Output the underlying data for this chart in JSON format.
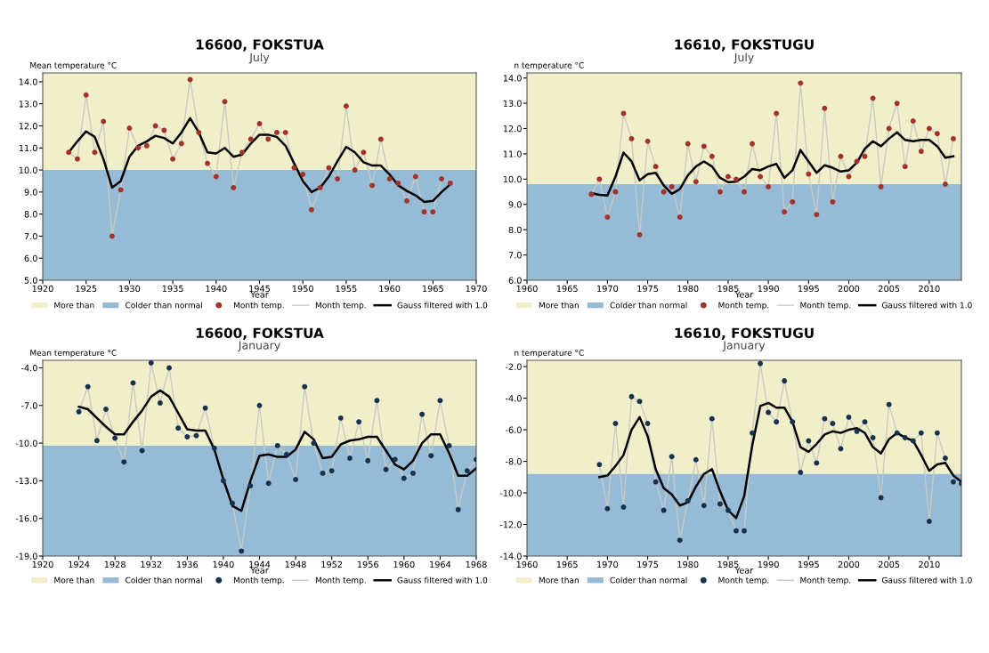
{
  "chart_data": [
    {
      "type": "line",
      "title": "16600, FOKSTUA",
      "subtitle": "July",
      "xlabel": "Year",
      "ylabel": "Mean temperature °C",
      "legend": "bottom",
      "grid": false,
      "x": [
        1923,
        1924,
        1925,
        1926,
        1927,
        1928,
        1929,
        1930,
        1931,
        1932,
        1933,
        1934,
        1935,
        1936,
        1937,
        1938,
        1939,
        1940,
        1941,
        1942,
        1943,
        1944,
        1945,
        1946,
        1947,
        1948,
        1949,
        1950,
        1951,
        1952,
        1953,
        1954,
        1955,
        1956,
        1957,
        1958,
        1959,
        1960,
        1961,
        1962,
        1963,
        1964,
        1965,
        1966,
        1967
      ],
      "series": [
        {
          "name": "Month temp.",
          "type": "scatter",
          "marker": "circle",
          "color": "#a3322b",
          "values": [
            10.8,
            10.5,
            13.4,
            10.8,
            12.2,
            7.0,
            9.1,
            11.9,
            11.0,
            11.1,
            12.0,
            11.8,
            10.5,
            11.2,
            14.1,
            11.7,
            10.3,
            9.7,
            13.1,
            9.2,
            10.8,
            11.4,
            12.1,
            11.4,
            11.7,
            11.7,
            10.1,
            9.8,
            8.2,
            9.2,
            10.1,
            9.6,
            12.9,
            10.0,
            10.8,
            9.3,
            11.4,
            9.6,
            9.4,
            8.6,
            9.7,
            8.1,
            8.1,
            9.6,
            9.4
          ]
        },
        {
          "name": "Month temp.",
          "color": "#c9c9c4",
          "values": [
            10.8,
            10.5,
            13.4,
            10.8,
            12.2,
            7.0,
            9.1,
            11.9,
            11.0,
            11.1,
            12.0,
            11.8,
            10.5,
            11.2,
            14.1,
            11.7,
            10.3,
            9.7,
            13.1,
            9.2,
            10.8,
            11.4,
            12.1,
            11.4,
            11.7,
            11.7,
            10.1,
            9.8,
            8.2,
            9.2,
            10.1,
            9.6,
            12.9,
            10.0,
            10.8,
            9.3,
            11.4,
            9.6,
            9.4,
            8.6,
            9.7,
            8.1,
            8.1,
            9.6,
            9.4
          ]
        },
        {
          "name": "Gauss filtered with 1.0",
          "color": "#000000",
          "values": [
            10.8,
            11.3,
            11.75,
            11.5,
            10.5,
            9.2,
            9.5,
            10.6,
            11.1,
            11.3,
            11.55,
            11.45,
            11.2,
            11.7,
            12.35,
            11.7,
            10.8,
            10.75,
            11.0,
            10.6,
            10.7,
            11.2,
            11.6,
            11.6,
            11.5,
            11.1,
            10.3,
            9.5,
            9.0,
            9.2,
            9.7,
            10.4,
            11.05,
            10.8,
            10.35,
            10.2,
            10.2,
            9.8,
            9.3,
            9.05,
            8.85,
            8.55,
            8.6,
            9.0,
            9.35
          ]
        }
      ],
      "bands": [
        {
          "axis": "y",
          "from": 10.0,
          "to": 14.4,
          "label": "More than",
          "color": "#f1efc9"
        },
        {
          "axis": "y",
          "from": 5.0,
          "to": 10.0,
          "label": "Colder than normal",
          "color": "#95bbd7"
        }
      ],
      "xlim": [
        1920,
        1970
      ],
      "xticks": [
        1920,
        1925,
        1930,
        1935,
        1940,
        1945,
        1950,
        1955,
        1960,
        1965,
        1970
      ],
      "ylim": [
        5.0,
        14.4
      ],
      "yticks": [
        {
          "value": 5,
          "label": "5.0"
        },
        {
          "value": 6,
          "label": "6.0"
        },
        {
          "value": 7,
          "label": "7.0"
        },
        {
          "value": 8,
          "label": "8.0"
        },
        {
          "value": 9,
          "label": "9.0"
        },
        {
          "value": 10,
          "label": "10.0"
        },
        {
          "value": 11,
          "label": "11.0"
        },
        {
          "value": 12,
          "label": "12.0"
        },
        {
          "value": 13,
          "label": "13.0"
        },
        {
          "value": 14,
          "label": "14.0"
        }
      ]
    },
    {
      "type": "line",
      "title": "16610, FOKSTUGU",
      "subtitle": "July",
      "xlabel": "Year",
      "ylabel": "n temperature °C",
      "legend": "bottom",
      "grid": false,
      "x": [
        1968,
        1969,
        1970,
        1971,
        1972,
        1973,
        1974,
        1975,
        1976,
        1977,
        1978,
        1979,
        1980,
        1981,
        1982,
        1983,
        1984,
        1985,
        1986,
        1987,
        1988,
        1989,
        1990,
        1991,
        1992,
        1993,
        1994,
        1995,
        1996,
        1997,
        1998,
        1999,
        2000,
        2001,
        2002,
        2003,
        2004,
        2005,
        2006,
        2007,
        2008,
        2009,
        2010,
        2011,
        2012,
        2013
      ],
      "series": [
        {
          "name": "Month temp.",
          "type": "scatter",
          "marker": "circle",
          "color": "#a3322b",
          "values": [
            9.4,
            10.0,
            8.5,
            9.5,
            12.6,
            11.6,
            7.8,
            11.5,
            10.5,
            9.5,
            9.7,
            8.5,
            11.4,
            9.9,
            11.3,
            10.9,
            9.5,
            10.1,
            10.0,
            9.5,
            11.4,
            10.1,
            9.7,
            12.6,
            8.7,
            9.1,
            13.8,
            10.2,
            8.6,
            12.8,
            9.1,
            10.9,
            10.1,
            10.7,
            10.9,
            13.2,
            9.7,
            12.0,
            13.0,
            10.5,
            12.3,
            11.1,
            12.0,
            11.8,
            9.8,
            11.6
          ]
        },
        {
          "name": "Month temp.",
          "color": "#c9c9c4",
          "values": [
            9.4,
            10.0,
            8.5,
            9.5,
            12.6,
            11.6,
            7.8,
            11.5,
            10.5,
            9.5,
            9.7,
            8.5,
            11.4,
            9.9,
            11.3,
            10.9,
            9.5,
            10.1,
            10.0,
            9.5,
            11.4,
            10.1,
            9.7,
            12.6,
            8.7,
            9.1,
            13.8,
            10.2,
            8.6,
            12.8,
            9.1,
            10.9,
            10.1,
            10.7,
            10.9,
            13.2,
            9.7,
            12.0,
            13.0,
            10.5,
            12.3,
            11.1,
            12.0,
            11.8,
            9.8,
            11.6
          ]
        },
        {
          "name": "Gauss filtered with 1.0",
          "color": "#000000",
          "values": [
            9.45,
            9.38,
            9.35,
            10.1,
            11.05,
            10.7,
            9.95,
            10.2,
            10.25,
            9.75,
            9.42,
            9.6,
            10.15,
            10.5,
            10.7,
            10.5,
            10.05,
            9.88,
            9.9,
            10.1,
            10.4,
            10.35,
            10.5,
            10.6,
            10.05,
            10.35,
            11.15,
            10.7,
            10.25,
            10.55,
            10.45,
            10.3,
            10.35,
            10.65,
            11.2,
            11.5,
            11.3,
            11.6,
            11.85,
            11.55,
            11.5,
            11.55,
            11.55,
            11.3,
            10.85,
            10.9
          ]
        }
      ],
      "bands": [
        {
          "axis": "y",
          "from": 9.8,
          "to": 14.2,
          "label": "More than",
          "color": "#f1efc9"
        },
        {
          "axis": "y",
          "from": 6.0,
          "to": 9.8,
          "label": "Colder than normal",
          "color": "#95bbd7"
        }
      ],
      "xlim": [
        1960,
        2014
      ],
      "xticks": [
        1960,
        1965,
        1970,
        1975,
        1980,
        1985,
        1990,
        1995,
        2000,
        2005,
        2010
      ],
      "ylim": [
        6.0,
        14.2
      ],
      "yticks": [
        {
          "value": 6,
          "label": "6.0"
        },
        {
          "value": 7,
          "label": "7.0"
        },
        {
          "value": 8,
          "label": "8.0"
        },
        {
          "value": 9,
          "label": "9.0"
        },
        {
          "value": 10,
          "label": "10.0"
        },
        {
          "value": 11,
          "label": "11.0"
        },
        {
          "value": 12,
          "label": "12.0"
        },
        {
          "value": 13,
          "label": "13.0"
        },
        {
          "value": 14,
          "label": "14.0"
        }
      ]
    },
    {
      "type": "line",
      "title": "16600, FOKSTUA",
      "subtitle": "January",
      "xlabel": "Year",
      "ylabel": "Mean temperature °C",
      "legend": "bottom",
      "grid": false,
      "x": [
        1924,
        1925,
        1926,
        1927,
        1928,
        1929,
        1930,
        1931,
        1932,
        1933,
        1934,
        1935,
        1936,
        1937,
        1938,
        1939,
        1940,
        1941,
        1942,
        1943,
        1944,
        1945,
        1946,
        1947,
        1948,
        1949,
        1950,
        1951,
        1952,
        1953,
        1954,
        1955,
        1956,
        1957,
        1958,
        1959,
        1960,
        1961,
        1962,
        1963,
        1964,
        1965,
        1966,
        1967,
        1968
      ],
      "series": [
        {
          "name": "Month temp.",
          "type": "scatter",
          "marker": "circle",
          "color": "#16324f",
          "values": [
            -7.5,
            -5.5,
            -9.8,
            -7.3,
            -9.6,
            -11.5,
            -5.2,
            -10.6,
            -3.6,
            -6.8,
            -4.0,
            -8.8,
            -9.5,
            -9.4,
            -7.2,
            -10.4,
            -13.0,
            -14.8,
            -18.6,
            -13.4,
            -7.0,
            -13.2,
            -10.2,
            -10.9,
            -12.9,
            -5.5,
            -10.0,
            -12.4,
            -12.2,
            -8.0,
            -11.2,
            -8.3,
            -11.4,
            -6.6,
            -12.1,
            -11.3,
            -12.8,
            -12.4,
            -7.7,
            -11.0,
            -6.6,
            -10.2,
            -15.3,
            -12.2,
            -11.3
          ]
        },
        {
          "name": "Month temp.",
          "color": "#c9c9c4",
          "values": [
            -7.5,
            -5.5,
            -9.8,
            -7.3,
            -9.6,
            -11.5,
            -5.2,
            -10.6,
            -3.6,
            -6.8,
            -4.0,
            -8.8,
            -9.5,
            -9.4,
            -7.2,
            -10.4,
            -13.0,
            -14.8,
            -18.6,
            -13.4,
            -7.0,
            -13.2,
            -10.2,
            -10.9,
            -12.9,
            -5.5,
            -10.0,
            -12.4,
            -12.2,
            -8.0,
            -11.2,
            -8.3,
            -11.4,
            -6.6,
            -12.1,
            -11.3,
            -12.8,
            -12.4,
            -7.7,
            -11.0,
            -6.6,
            -10.2,
            -15.3,
            -12.2,
            -11.3
          ]
        },
        {
          "name": "Gauss filtered with 1.0",
          "color": "#000000",
          "values": [
            -7.1,
            -7.3,
            -8.0,
            -8.7,
            -9.3,
            -9.3,
            -8.3,
            -7.4,
            -6.3,
            -5.8,
            -6.3,
            -7.6,
            -8.9,
            -9.0,
            -9.0,
            -10.5,
            -12.9,
            -15.0,
            -15.4,
            -13.0,
            -11.0,
            -10.9,
            -11.1,
            -11.1,
            -10.5,
            -9.1,
            -9.7,
            -11.2,
            -11.1,
            -10.1,
            -9.8,
            -9.7,
            -9.5,
            -9.5,
            -10.6,
            -11.7,
            -12.1,
            -11.4,
            -10.0,
            -9.3,
            -9.3,
            -10.8,
            -12.6,
            -12.6,
            -12.0
          ]
        }
      ],
      "bands": [
        {
          "axis": "y",
          "from": -10.2,
          "to": -3.4,
          "label": "More than",
          "color": "#f1efc9"
        },
        {
          "axis": "y",
          "from": -19.0,
          "to": -10.2,
          "label": "Colder than normal",
          "color": "#95bbd7"
        }
      ],
      "xlim": [
        1920,
        1968
      ],
      "xticks": [
        1920,
        1924,
        1928,
        1932,
        1936,
        1940,
        1944,
        1948,
        1952,
        1956,
        1960,
        1964,
        1968
      ],
      "ylim": [
        -19.0,
        -3.4
      ],
      "yticks": [
        {
          "value": -19,
          "label": "-19.0"
        },
        {
          "value": -16,
          "label": "-16.0"
        },
        {
          "value": -13,
          "label": "-13.0"
        },
        {
          "value": -10,
          "label": "-10.0"
        },
        {
          "value": -7,
          "label": "-7.0"
        },
        {
          "value": -4,
          "label": "-4.0"
        }
      ]
    },
    {
      "type": "line",
      "title": "16610, FOKSTUGU",
      "subtitle": "January",
      "xlabel": "Year",
      "ylabel": "n temperature °C",
      "legend": "bottom",
      "grid": false,
      "x": [
        1969,
        1970,
        1971,
        1972,
        1973,
        1974,
        1975,
        1976,
        1977,
        1978,
        1979,
        1980,
        1981,
        1982,
        1983,
        1984,
        1985,
        1986,
        1987,
        1988,
        1989,
        1990,
        1991,
        1992,
        1993,
        1994,
        1995,
        1996,
        1997,
        1998,
        1999,
        2000,
        2001,
        2002,
        2003,
        2004,
        2005,
        2006,
        2007,
        2008,
        2009,
        2010,
        2011,
        2012,
        2013,
        2014
      ],
      "series": [
        {
          "name": "Month temp.",
          "type": "scatter",
          "marker": "circle",
          "color": "#16324f",
          "values": [
            -8.2,
            -11.0,
            -5.6,
            -10.9,
            -3.9,
            -4.2,
            -5.6,
            -9.3,
            -11.1,
            -7.7,
            -13.0,
            -10.5,
            -7.9,
            -10.8,
            -5.3,
            -10.7,
            -11.1,
            -12.4,
            -12.4,
            -6.2,
            -1.8,
            -4.9,
            -5.5,
            -2.9,
            -5.5,
            -8.7,
            -6.7,
            -8.1,
            -5.3,
            -5.6,
            -7.2,
            -5.2,
            -6.1,
            -5.5,
            -6.5,
            -10.3,
            -4.4,
            -6.2,
            -6.5,
            -6.7,
            -6.2,
            -11.8,
            -6.2,
            -7.8,
            -9.3,
            -9.4
          ]
        },
        {
          "name": "Month temp.",
          "color": "#c9c9c4",
          "values": [
            -8.2,
            -11.0,
            -5.6,
            -10.9,
            -3.9,
            -4.2,
            -5.6,
            -9.3,
            -11.1,
            -7.7,
            -13.0,
            -10.5,
            -7.9,
            -10.8,
            -5.3,
            -10.7,
            -11.1,
            -12.4,
            -12.4,
            -6.2,
            -1.8,
            -4.9,
            -5.5,
            -2.9,
            -5.5,
            -8.7,
            -6.7,
            -8.1,
            -5.3,
            -5.6,
            -7.2,
            -5.2,
            -6.1,
            -5.5,
            -6.5,
            -10.3,
            -4.4,
            -6.2,
            -6.5,
            -6.7,
            -6.2,
            -11.8,
            -6.2,
            -7.8,
            -9.3,
            -9.4
          ]
        },
        {
          "name": "Gauss filtered with 1.0",
          "color": "#000000",
          "values": [
            -9.0,
            -8.9,
            -8.3,
            -7.6,
            -6.0,
            -5.2,
            -6.4,
            -8.5,
            -9.7,
            -10.1,
            -10.8,
            -10.6,
            -9.6,
            -8.8,
            -8.5,
            -9.9,
            -11.1,
            -11.6,
            -10.2,
            -7.0,
            -4.5,
            -4.3,
            -4.6,
            -4.6,
            -5.5,
            -7.1,
            -7.4,
            -6.9,
            -6.3,
            -6.1,
            -6.2,
            -6.0,
            -5.9,
            -6.2,
            -7.1,
            -7.5,
            -6.6,
            -6.2,
            -6.5,
            -6.7,
            -7.6,
            -8.6,
            -8.2,
            -8.1,
            -8.9,
            -9.3
          ]
        }
      ],
      "bands": [
        {
          "axis": "y",
          "from": -8.8,
          "to": -1.6,
          "label": "More than",
          "color": "#f1efc9"
        },
        {
          "axis": "y",
          "from": -14.0,
          "to": -8.8,
          "label": "Colder than normal",
          "color": "#95bbd7"
        }
      ],
      "xlim": [
        1960,
        2014
      ],
      "xticks": [
        1960,
        1965,
        1970,
        1975,
        1980,
        1985,
        1990,
        1995,
        2000,
        2005,
        2010
      ],
      "ylim": [
        -14.0,
        -1.6
      ],
      "yticks": [
        {
          "value": -14,
          "label": "-14.0"
        },
        {
          "value": -12,
          "label": "-12.0"
        },
        {
          "value": -10,
          "label": "-10.0"
        },
        {
          "value": -8,
          "label": "-8.0"
        },
        {
          "value": -6,
          "label": "-6.0"
        },
        {
          "value": -4,
          "label": "-4.0"
        },
        {
          "value": -2,
          "label": "-2.0"
        }
      ]
    }
  ]
}
